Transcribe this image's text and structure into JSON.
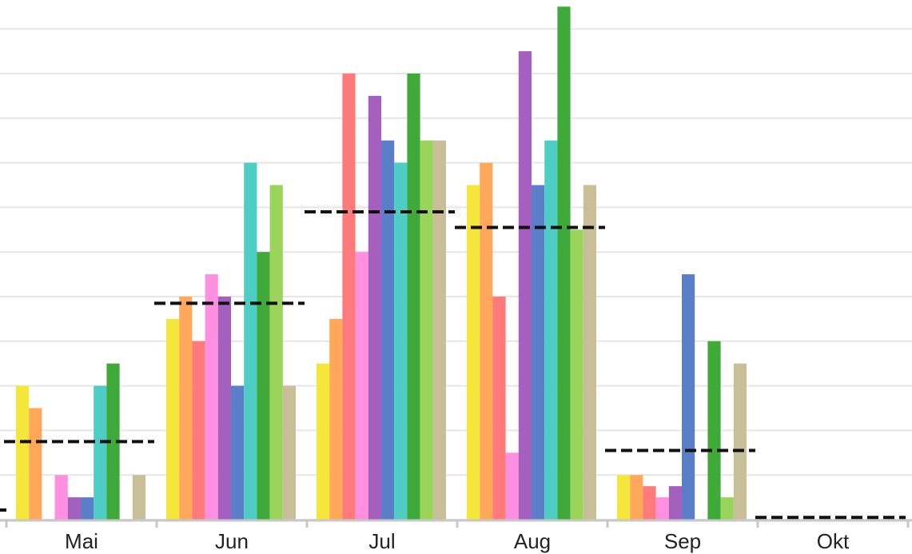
{
  "chart_data": {
    "type": "bar",
    "categories": [
      "Mai",
      "Jun",
      "Jul",
      "Aug",
      "Sep",
      "Okt"
    ],
    "ylim": [
      0,
      23
    ],
    "grid": true,
    "series": [
      {
        "color": "#f5e63c",
        "values": [
          6,
          9,
          7,
          15,
          2,
          0
        ]
      },
      {
        "color": "#ffa85a",
        "values": [
          5,
          10,
          9,
          16,
          2,
          0
        ]
      },
      {
        "color": "#ff7a7a",
        "values": [
          0,
          8,
          20,
          10,
          1.5,
          0
        ]
      },
      {
        "color": "#ff8fe0",
        "values": [
          2,
          11,
          12,
          3,
          1,
          0
        ]
      },
      {
        "color": "#a45fbf",
        "values": [
          1,
          10,
          19,
          21,
          1.5,
          0
        ]
      },
      {
        "color": "#5a7ec8",
        "values": [
          1,
          6,
          17,
          15,
          11,
          0
        ]
      },
      {
        "color": "#4ecdc4",
        "values": [
          6,
          16,
          16,
          17,
          0,
          0
        ]
      },
      {
        "color": "#3faa3a",
        "values": [
          7,
          12,
          20,
          23,
          8,
          0
        ]
      },
      {
        "color": "#9ad45a",
        "values": [
          0,
          15,
          17,
          13,
          1,
          0
        ]
      },
      {
        "color": "#c8bf98",
        "values": [
          2,
          6,
          17,
          15,
          7,
          0
        ]
      }
    ],
    "monthly_average": [
      3.5,
      9.7,
      13.8,
      13.1,
      3.1,
      0.1
    ]
  }
}
